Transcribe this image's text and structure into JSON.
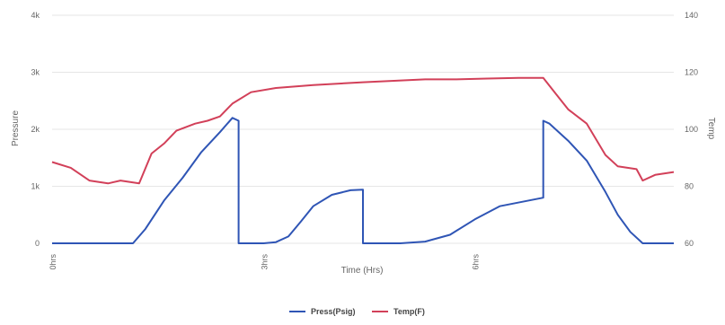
{
  "chart_data": {
    "type": "line",
    "xlabel": "Time (Hrs)",
    "ylabel_left": "Pressure",
    "ylabel_right": "Temp",
    "xlim": [
      0,
      10
    ],
    "ylim_left": [
      0,
      4000
    ],
    "ylim_right": [
      60,
      140
    ],
    "x_ticks": [
      {
        "value": 0,
        "label": "0hrs"
      },
      {
        "value": 3.4,
        "label": "3hrs"
      },
      {
        "value": 6.8,
        "label": "6hrs"
      }
    ],
    "y_left_ticks": [
      {
        "value": 0,
        "label": "0"
      },
      {
        "value": 1000,
        "label": "1k"
      },
      {
        "value": 2000,
        "label": "2k"
      },
      {
        "value": 3000,
        "label": "3k"
      },
      {
        "value": 4000,
        "label": "4k"
      }
    ],
    "y_right_ticks": [
      {
        "value": 60,
        "label": "60"
      },
      {
        "value": 80,
        "label": "80"
      },
      {
        "value": 100,
        "label": "100"
      },
      {
        "value": 120,
        "label": "120"
      },
      {
        "value": 140,
        "label": "140"
      }
    ],
    "grid": true,
    "legend_position": "bottom-center",
    "series": [
      {
        "name": "Press(Psig)",
        "axis": "left",
        "color": "#2f55b5",
        "x": [
          0,
          1.3,
          1.5,
          1.8,
          2.1,
          2.4,
          2.7,
          2.9,
          3.0,
          3.0,
          3.4,
          3.6,
          3.8,
          4.0,
          4.2,
          4.5,
          4.8,
          5.0,
          5.0,
          5.6,
          6.0,
          6.4,
          6.8,
          7.2,
          7.9,
          7.9,
          8.0,
          8.3,
          8.6,
          8.9,
          9.1,
          9.3,
          9.5,
          10.0
        ],
        "values": [
          0,
          0,
          250,
          750,
          1150,
          1600,
          1950,
          2200,
          2150,
          0,
          0,
          20,
          120,
          380,
          650,
          850,
          930,
          940,
          0,
          0,
          30,
          150,
          420,
          650,
          800,
          2150,
          2100,
          1800,
          1450,
          900,
          500,
          200,
          0,
          0
        ]
      },
      {
        "name": "Temp(F)",
        "axis": "right",
        "color": "#d24059",
        "x": [
          0,
          0.3,
          0.6,
          0.9,
          1.1,
          1.4,
          1.6,
          1.8,
          2.0,
          2.3,
          2.5,
          2.7,
          2.9,
          3.2,
          3.6,
          4.2,
          5.0,
          5.5,
          6.0,
          6.5,
          7.0,
          7.5,
          7.9,
          8.1,
          8.3,
          8.6,
          8.9,
          9.1,
          9.4,
          9.5,
          9.7,
          10.0
        ],
        "values": [
          88.5,
          86.5,
          82,
          81,
          82,
          81,
          91.5,
          95,
          99.5,
          102,
          103,
          104.5,
          109,
          113,
          114.5,
          115.5,
          116.5,
          117,
          117.5,
          117.5,
          117.8,
          118,
          118,
          112.5,
          107,
          102,
          91,
          87,
          86,
          82,
          84,
          85
        ]
      }
    ]
  }
}
